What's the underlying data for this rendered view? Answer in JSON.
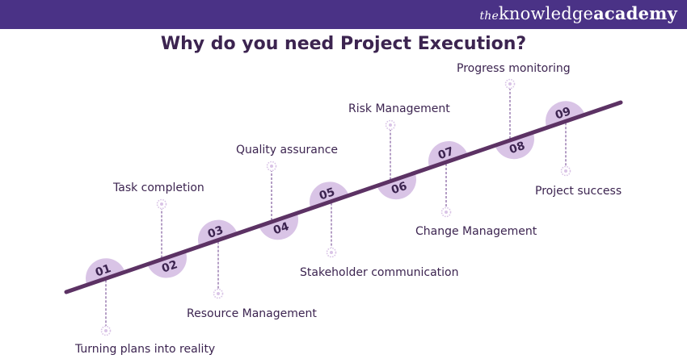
{
  "brand": {
    "prefix": "the",
    "knowledge": "knowledge",
    "academy": "academy"
  },
  "title": "Why do you need Project Execution?",
  "colors": {
    "header": "#4a3286",
    "line": "#5c3264",
    "circle": "#d9c4e6",
    "text": "#3c2450",
    "connector": "#8c6aa6"
  },
  "steps": [
    {
      "number": "01",
      "label": "Turning plans into reality"
    },
    {
      "number": "02",
      "label": "Task completion"
    },
    {
      "number": "03",
      "label": "Resource Management"
    },
    {
      "number": "04",
      "label": "Quality assurance"
    },
    {
      "number": "05",
      "label": "Stakeholder communication"
    },
    {
      "number": "06",
      "label": "Risk Management"
    },
    {
      "number": "07",
      "label": "Change Management"
    },
    {
      "number": "08",
      "label": "Progress monitoring"
    },
    {
      "number": "09",
      "label": "Project success"
    }
  ]
}
